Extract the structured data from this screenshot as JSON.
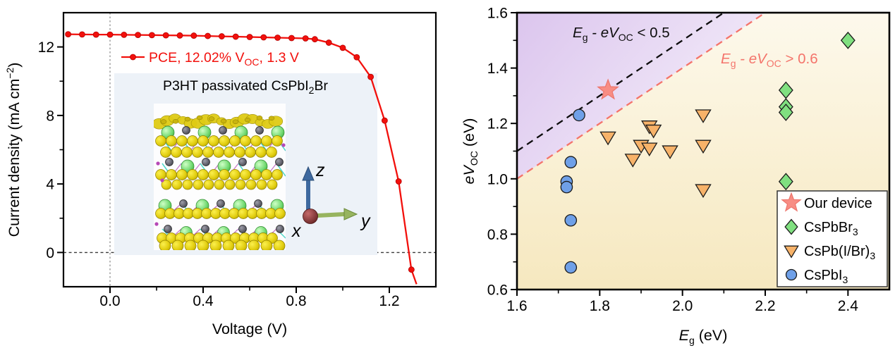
{
  "figure": {
    "left": {
      "legend_pre": "PCE, 12.02% V",
      "legend_sub": "OC",
      "legend_post": ", 1.3 V",
      "inset_title_pre": "P3HT passivated CsPbI",
      "inset_title_sub": "2",
      "inset_title_post": "Br",
      "xlabel": "Voltage (V)",
      "ylabel_pre": "Current density (mA cm",
      "ylabel_sup": "−2",
      "ylabel_post": ")",
      "xticks": [
        "0.0",
        "0.4",
        "0.8",
        "1.2"
      ],
      "yticks": [
        "0",
        "4",
        "8",
        "12"
      ],
      "triad_x": "x",
      "triad_y": "y",
      "triad_z": "z"
    },
    "right": {
      "xlabel_pre": "E",
      "xlabel_sub": "g",
      "xlabel_post": " (eV)",
      "ylabel_pre": "eV",
      "ylabel_sub": "OC",
      "ylabel_post": " (eV)",
      "xticks": [
        "1.6",
        "1.8",
        "2.0",
        "2.2",
        "2.4"
      ],
      "yticks": [
        "0.6",
        "0.8",
        "1.0",
        "1.2",
        "1.4",
        "1.6"
      ],
      "ann_black_pre": "E",
      "ann_black_sub1": "g",
      "ann_black_mid": " - eV",
      "ann_black_sub2": "OC",
      "ann_black_post": " < 0.5",
      "ann_red_pre": "E",
      "ann_red_sub1": "g",
      "ann_red_mid": " - eV",
      "ann_red_sub2": "OC",
      "ann_red_post": " > 0.6",
      "legend": [
        {
          "marker": "star",
          "label": "Our device",
          "sub": ""
        },
        {
          "marker": "diamond",
          "label": "CsPbBr",
          "sub": "3"
        },
        {
          "marker": "triangle",
          "label": "CsPb(I/Br)",
          "sub": "3"
        },
        {
          "marker": "circle",
          "label": "CsPbI",
          "sub": "3"
        }
      ]
    }
  },
  "colors": {
    "curve_red": "#F2100C",
    "curve_marker_edge": "#B50000",
    "salmon_line": "#F4746B",
    "black_line": "#0d0d0d",
    "star_fill": "#F88D84",
    "star_edge": "#ED756C",
    "diamond_fill": "#80E080",
    "triangle_fill": "#F7B269",
    "circle_fill": "#6FA0E8",
    "marker_edge": "#1b1b1b",
    "purple_region_start": "#DCC6EE",
    "purple_region_end": "#F5EFFA",
    "yellow_region_start": "#FDF9EC",
    "yellow_region_end": "#F6E8BF",
    "inset_bg": "#EDF2F8"
  },
  "chart_data": [
    {
      "type": "line",
      "title": "J-V curve, P3HT passivated CsPbI2Br",
      "xlabel": "Voltage (V)",
      "ylabel": "Current density (mA cm-2)",
      "xlim": [
        -0.2,
        1.4
      ],
      "ylim": [
        -2,
        14
      ],
      "grid": false,
      "series": [
        {
          "name": "PCE, 12.02% VOC, 1.3 V",
          "jsc_mA_cm2": 12.7,
          "voc_V": 1.3,
          "points": [
            [
              -0.18,
              12.74
            ],
            [
              -0.12,
              12.73
            ],
            [
              -0.06,
              12.72
            ],
            [
              0.0,
              12.72
            ],
            [
              0.06,
              12.71
            ],
            [
              0.12,
              12.7
            ],
            [
              0.18,
              12.69
            ],
            [
              0.24,
              12.68
            ],
            [
              0.3,
              12.67
            ],
            [
              0.36,
              12.66
            ],
            [
              0.42,
              12.64
            ],
            [
              0.48,
              12.62
            ],
            [
              0.54,
              12.6
            ],
            [
              0.6,
              12.58
            ],
            [
              0.66,
              12.56
            ],
            [
              0.72,
              12.54
            ],
            [
              0.78,
              12.52
            ],
            [
              0.84,
              12.5
            ],
            [
              0.88,
              12.45
            ],
            [
              0.94,
              12.25
            ],
            [
              1.0,
              11.95
            ],
            [
              1.06,
              11.4
            ],
            [
              1.12,
              10.25
            ],
            [
              1.18,
              7.7
            ],
            [
              1.24,
              4.15
            ],
            [
              1.295,
              -1.0
            ]
          ],
          "line_end": [
            1.317,
            -1.85
          ]
        }
      ],
      "reference_lines": {
        "horizontal_zero": 0.0,
        "vertical_zero": 0.0
      }
    },
    {
      "type": "scatter",
      "xlabel": "Eg (eV)",
      "ylabel": "eVOC (eV)",
      "xlim": [
        1.6,
        2.5
      ],
      "ylim": [
        0.6,
        1.6
      ],
      "grid": false,
      "legend_position": "lower right",
      "series": [
        {
          "name": "Our device",
          "marker": "star",
          "points": [
            [
              1.82,
              1.32
            ]
          ]
        },
        {
          "name": "CsPbBr3",
          "marker": "diamond",
          "points": [
            [
              2.4,
              1.5
            ],
            [
              2.25,
              1.32
            ],
            [
              2.25,
              1.26
            ],
            [
              2.25,
              1.24
            ],
            [
              2.25,
              0.99
            ]
          ]
        },
        {
          "name": "CsPb(I/Br)3",
          "marker": "triangle-down",
          "points": [
            [
              2.05,
              1.23
            ],
            [
              1.92,
              1.19
            ],
            [
              1.93,
              1.175
            ],
            [
              1.82,
              1.15
            ],
            [
              1.9,
              1.12
            ],
            [
              1.92,
              1.11
            ],
            [
              1.97,
              1.1
            ],
            [
              1.88,
              1.07
            ],
            [
              2.05,
              1.12
            ],
            [
              2.05,
              0.96
            ]
          ]
        },
        {
          "name": "CsPbI3",
          "marker": "circle",
          "points": [
            [
              1.75,
              1.23
            ],
            [
              1.73,
              1.06
            ],
            [
              1.72,
              0.99
            ],
            [
              1.72,
              0.97
            ],
            [
              1.73,
              0.85
            ],
            [
              1.73,
              0.68
            ]
          ]
        }
      ],
      "boundary_lines": [
        {
          "label": "Eg - eVOC < 0.5",
          "offset": 0.5,
          "color_key": "black_line"
        },
        {
          "label": "Eg - eVOC > 0.6",
          "offset": 0.6,
          "color_key": "salmon_line"
        }
      ]
    }
  ]
}
